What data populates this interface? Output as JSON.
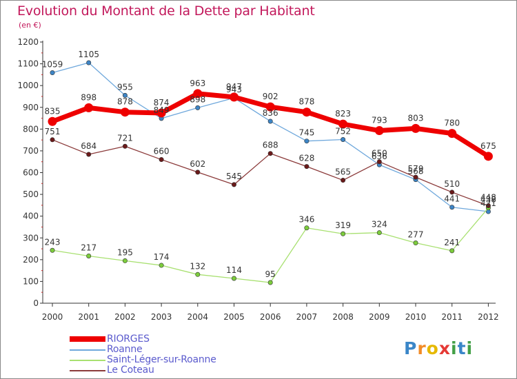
{
  "title": "Evolution du Montant de la Dette par Habitant",
  "subtitle": "(en €)",
  "logo": {
    "text": "Proxiti",
    "letters": [
      "P",
      "r",
      "o",
      "x",
      "i",
      "t",
      "i"
    ],
    "colors": [
      "#3a86c8",
      "#f28c28",
      "#e6b800",
      "#e53935",
      "#43a047",
      "#3a86c8",
      "#43a047"
    ]
  },
  "chart_data": {
    "type": "line",
    "title": "Evolution du Montant de la Dette par Habitant",
    "subtitle": "(en €)",
    "xlabel": "",
    "ylabel": "",
    "ylim": [
      0,
      1200
    ],
    "yticks": [
      0,
      100,
      200,
      300,
      400,
      500,
      600,
      700,
      800,
      900,
      1000,
      1100,
      1200
    ],
    "grid": false,
    "legend_position": "bottom-left",
    "x": [
      "2000",
      "2001",
      "2002",
      "2003",
      "2004",
      "2005",
      "2006",
      "2007",
      "2008",
      "2009",
      "2010",
      "2011",
      "2012"
    ],
    "series": [
      {
        "name": "RIORGES",
        "color": "#ee0000",
        "marker_color": "#ee0000",
        "width": "thick",
        "values": [
          835,
          898,
          878,
          874,
          963,
          947,
          902,
          878,
          823,
          793,
          803,
          780,
          675
        ]
      },
      {
        "name": "Roanne",
        "color": "#6fa8dc",
        "marker_color": "#3d85c6",
        "width": "thin",
        "values": [
          1059,
          1105,
          955,
          849,
          898,
          943,
          836,
          745,
          752,
          636,
          568,
          441,
          421
        ]
      },
      {
        "name": "Saint-Léger-sur-Roanne",
        "color": "#a8e070",
        "marker_color": "#7ccc3c",
        "width": "thin",
        "values": [
          243,
          217,
          195,
          174,
          132,
          114,
          95,
          346,
          319,
          324,
          277,
          241,
          438
        ]
      },
      {
        "name": "Le Coteau",
        "color": "#8b3a3a",
        "marker_color": "#6b1a1a",
        "width": "thin",
        "values": [
          751,
          684,
          721,
          660,
          602,
          545,
          688,
          628,
          565,
          650,
          579,
          510,
          448
        ]
      }
    ]
  }
}
